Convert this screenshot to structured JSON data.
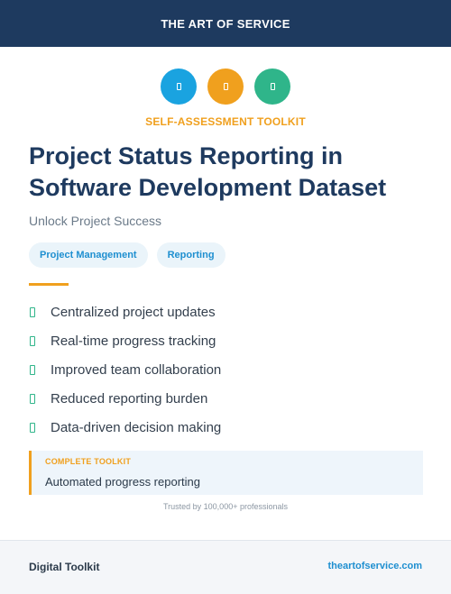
{
  "header": {
    "title": "THE ART OF SERVICE"
  },
  "icons": [
    {
      "name": "document-icon",
      "color": "#1aa3e0"
    },
    {
      "name": "document-icon",
      "color": "#f0a01e"
    },
    {
      "name": "document-icon",
      "color": "#2fb58a"
    }
  ],
  "kicker": "SELF-ASSESSMENT TOOLKIT",
  "title": "Project Status Reporting in Software Development Dataset",
  "subtitle": "Unlock Project Success",
  "tags": [
    "Project Management",
    "Reporting"
  ],
  "features": [
    "Centralized project updates",
    "Real-time progress tracking",
    "Improved team collaboration",
    "Reduced reporting burden",
    "Data-driven decision making"
  ],
  "callout": {
    "kicker": "COMPLETE TOOLKIT",
    "text": "Automated progress reporting"
  },
  "trusted": "Trusted by 100,000+ professionals",
  "footer": {
    "left": "Digital Toolkit",
    "right": "theartofservice.com"
  },
  "colors": {
    "navy": "#1e3a5f",
    "orange": "#f0a01e",
    "blue": "#1aa3e0",
    "green": "#2fb58a"
  }
}
